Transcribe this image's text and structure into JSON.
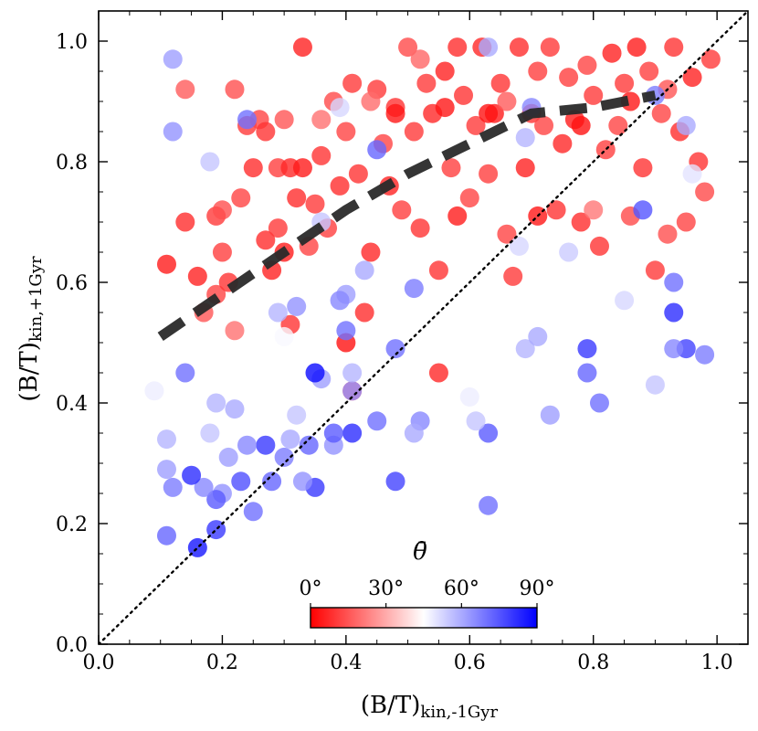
{
  "chart_data": {
    "type": "scatter",
    "xlabel": "(B/T)kin,-1Gyr",
    "ylabel": "(B/T)kin,+1Gyr",
    "xlabel_main": "(B/T)",
    "xlabel_sub": "kin,-1Gyr",
    "ylabel_main": "(B/T)",
    "ylabel_sub": "kin,+1Gyr",
    "xlim": [
      0.0,
      1.05
    ],
    "ylim": [
      0.0,
      1.05
    ],
    "xticks": [
      "0.0",
      "0.2",
      "0.4",
      "0.6",
      "0.8",
      "1.0"
    ],
    "yticks": [
      "0.0",
      "0.2",
      "0.4",
      "0.6",
      "0.8",
      "1.0"
    ],
    "xtick_values": [
      0.0,
      0.2,
      0.4,
      0.6,
      0.8,
      1.0
    ],
    "ytick_values": [
      0.0,
      0.2,
      0.4,
      0.6,
      0.8,
      1.0
    ],
    "colorbar": {
      "title": "θ̄",
      "ticks": [
        "0°",
        "30°",
        "60°",
        "90°"
      ],
      "tick_values": [
        0,
        30,
        60,
        90
      ],
      "range": [
        0,
        90
      ],
      "colors": [
        "#ff0000",
        "#ffffff",
        "#0000ff"
      ]
    },
    "reference_line": {
      "name": "one-to-one",
      "style": "dotted",
      "points": [
        [
          0.0,
          0.0
        ],
        [
          1.05,
          1.05
        ]
      ]
    },
    "trend_line": {
      "name": "median trend",
      "style": "dashed",
      "color": "#2a2a2a",
      "x": [
        0.1,
        0.2,
        0.3,
        0.4,
        0.5,
        0.6,
        0.7,
        0.8,
        0.9
      ],
      "y": [
        0.51,
        0.58,
        0.65,
        0.72,
        0.78,
        0.83,
        0.88,
        0.89,
        0.91
      ]
    },
    "points": [
      [
        0.11,
        0.63,
        5
      ],
      [
        0.14,
        0.7,
        8
      ],
      [
        0.16,
        0.61,
        6
      ],
      [
        0.17,
        0.55,
        15
      ],
      [
        0.19,
        0.58,
        12
      ],
      [
        0.19,
        0.71,
        10
      ],
      [
        0.2,
        0.72,
        14
      ],
      [
        0.2,
        0.65,
        11
      ],
      [
        0.21,
        0.6,
        9
      ],
      [
        0.22,
        0.52,
        20
      ],
      [
        0.23,
        0.74,
        12
      ],
      [
        0.24,
        0.86,
        10
      ],
      [
        0.25,
        0.79,
        8
      ],
      [
        0.26,
        0.87,
        12
      ],
      [
        0.27,
        0.85,
        9
      ],
      [
        0.27,
        0.67,
        8
      ],
      [
        0.28,
        0.62,
        6
      ],
      [
        0.29,
        0.69,
        10
      ],
      [
        0.29,
        0.79,
        11
      ],
      [
        0.3,
        0.87,
        15
      ],
      [
        0.3,
        0.65,
        5
      ],
      [
        0.31,
        0.79,
        7
      ],
      [
        0.31,
        0.53,
        9
      ],
      [
        0.32,
        0.74,
        8
      ],
      [
        0.33,
        0.99,
        6
      ],
      [
        0.34,
        0.66,
        12
      ],
      [
        0.35,
        0.73,
        10
      ],
      [
        0.36,
        0.81,
        9
      ],
      [
        0.37,
        0.69,
        11
      ],
      [
        0.38,
        0.9,
        13
      ],
      [
        0.39,
        0.76,
        8
      ],
      [
        0.4,
        0.85,
        12
      ],
      [
        0.41,
        0.93,
        10
      ],
      [
        0.42,
        0.78,
        9
      ],
      [
        0.43,
        0.55,
        8
      ],
      [
        0.44,
        0.65,
        7
      ],
      [
        0.45,
        0.92,
        10
      ],
      [
        0.46,
        0.83,
        12
      ],
      [
        0.47,
        0.76,
        6
      ],
      [
        0.48,
        0.89,
        9
      ],
      [
        0.49,
        0.72,
        11
      ],
      [
        0.5,
        0.99,
        13
      ],
      [
        0.51,
        0.85,
        10
      ],
      [
        0.52,
        0.69,
        9
      ],
      [
        0.53,
        0.93,
        10
      ],
      [
        0.54,
        0.88,
        7
      ],
      [
        0.55,
        0.62,
        9
      ],
      [
        0.56,
        0.95,
        6
      ],
      [
        0.57,
        0.79,
        11
      ],
      [
        0.58,
        0.71,
        5
      ],
      [
        0.58,
        0.99,
        8
      ],
      [
        0.59,
        0.91,
        9
      ],
      [
        0.6,
        0.74,
        12
      ],
      [
        0.61,
        0.86,
        10
      ],
      [
        0.62,
        0.99,
        7
      ],
      [
        0.63,
        0.78,
        11
      ],
      [
        0.64,
        0.88,
        5
      ],
      [
        0.65,
        0.93,
        9
      ],
      [
        0.66,
        0.68,
        12
      ],
      [
        0.67,
        0.61,
        10
      ],
      [
        0.68,
        0.99,
        8
      ],
      [
        0.69,
        0.79,
        6
      ],
      [
        0.7,
        0.88,
        9
      ],
      [
        0.71,
        0.95,
        11
      ],
      [
        0.72,
        0.86,
        12
      ],
      [
        0.73,
        0.99,
        10
      ],
      [
        0.74,
        0.72,
        9
      ],
      [
        0.75,
        0.83,
        7
      ],
      [
        0.76,
        0.94,
        11
      ],
      [
        0.77,
        0.87,
        5
      ],
      [
        0.78,
        0.7,
        8
      ],
      [
        0.79,
        0.96,
        12
      ],
      [
        0.8,
        0.91,
        10
      ],
      [
        0.81,
        0.66,
        9
      ],
      [
        0.82,
        0.82,
        11
      ],
      [
        0.83,
        0.98,
        6
      ],
      [
        0.84,
        0.86,
        12
      ],
      [
        0.85,
        0.93,
        10
      ],
      [
        0.86,
        0.71,
        13
      ],
      [
        0.87,
        0.99,
        5
      ],
      [
        0.88,
        0.79,
        9
      ],
      [
        0.89,
        0.95,
        11
      ],
      [
        0.9,
        0.62,
        10
      ],
      [
        0.91,
        0.88,
        12
      ],
      [
        0.92,
        0.68,
        14
      ],
      [
        0.93,
        0.99,
        9
      ],
      [
        0.94,
        0.85,
        8
      ],
      [
        0.95,
        0.7,
        12
      ],
      [
        0.96,
        0.94,
        6
      ],
      [
        0.97,
        0.8,
        9
      ],
      [
        0.98,
        0.75,
        13
      ],
      [
        0.99,
        0.97,
        10
      ],
      [
        0.22,
        0.92,
        14
      ],
      [
        0.14,
        0.92,
        16
      ],
      [
        0.36,
        0.87,
        20
      ],
      [
        0.44,
        0.9,
        19
      ],
      [
        0.52,
        0.97,
        18
      ],
      [
        0.66,
        0.9,
        16
      ],
      [
        0.8,
        0.72,
        21
      ],
      [
        0.92,
        0.92,
        15
      ],
      [
        0.48,
        0.88,
        4
      ],
      [
        0.56,
        0.89,
        4
      ],
      [
        0.63,
        0.88,
        3
      ],
      [
        0.78,
        0.86,
        3
      ],
      [
        0.86,
        0.9,
        4
      ],
      [
        0.4,
        0.5,
        3
      ],
      [
        0.55,
        0.45,
        7
      ],
      [
        0.71,
        0.71,
        4
      ],
      [
        0.33,
        0.79,
        5
      ],
      [
        0.41,
        0.42,
        10
      ],
      [
        0.12,
        0.97,
        62
      ],
      [
        0.12,
        0.85,
        64
      ],
      [
        0.18,
        0.8,
        55
      ],
      [
        0.24,
        0.87,
        70
      ],
      [
        0.39,
        0.89,
        52
      ],
      [
        0.45,
        0.82,
        72
      ],
      [
        0.63,
        0.99,
        60
      ],
      [
        0.69,
        0.84,
        58
      ],
      [
        0.7,
        0.89,
        66
      ],
      [
        0.88,
        0.72,
        75
      ],
      [
        0.95,
        0.86,
        60
      ],
      [
        0.9,
        0.91,
        68
      ],
      [
        0.93,
        0.6,
        70
      ],
      [
        0.93,
        0.55,
        82
      ],
      [
        0.95,
        0.49,
        78
      ],
      [
        0.93,
        0.49,
        66
      ],
      [
        0.98,
        0.48,
        68
      ],
      [
        0.9,
        0.43,
        55
      ],
      [
        0.79,
        0.49,
        80
      ],
      [
        0.79,
        0.45,
        72
      ],
      [
        0.81,
        0.4,
        70
      ],
      [
        0.73,
        0.38,
        62
      ],
      [
        0.69,
        0.49,
        58
      ],
      [
        0.71,
        0.51,
        60
      ],
      [
        0.63,
        0.35,
        74
      ],
      [
        0.63,
        0.23,
        70
      ],
      [
        0.61,
        0.37,
        55
      ],
      [
        0.52,
        0.37,
        66
      ],
      [
        0.51,
        0.35,
        60
      ],
      [
        0.51,
        0.59,
        68
      ],
      [
        0.48,
        0.49,
        70
      ],
      [
        0.48,
        0.27,
        78
      ],
      [
        0.45,
        0.37,
        70
      ],
      [
        0.41,
        0.35,
        82
      ],
      [
        0.41,
        0.42,
        64
      ],
      [
        0.41,
        0.45,
        58
      ],
      [
        0.4,
        0.58,
        62
      ],
      [
        0.4,
        0.52,
        70
      ],
      [
        0.39,
        0.57,
        66
      ],
      [
        0.38,
        0.33,
        64
      ],
      [
        0.38,
        0.35,
        74
      ],
      [
        0.36,
        0.44,
        62
      ],
      [
        0.35,
        0.45,
        88
      ],
      [
        0.35,
        0.26,
        80
      ],
      [
        0.34,
        0.33,
        72
      ],
      [
        0.33,
        0.27,
        64
      ],
      [
        0.32,
        0.56,
        64
      ],
      [
        0.32,
        0.38,
        55
      ],
      [
        0.31,
        0.34,
        60
      ],
      [
        0.3,
        0.31,
        68
      ],
      [
        0.29,
        0.55,
        58
      ],
      [
        0.28,
        0.27,
        72
      ],
      [
        0.27,
        0.33,
        80
      ],
      [
        0.25,
        0.22,
        70
      ],
      [
        0.24,
        0.33,
        66
      ],
      [
        0.23,
        0.27,
        76
      ],
      [
        0.22,
        0.39,
        60
      ],
      [
        0.21,
        0.31,
        62
      ],
      [
        0.2,
        0.25,
        64
      ],
      [
        0.19,
        0.4,
        58
      ],
      [
        0.19,
        0.24,
        74
      ],
      [
        0.19,
        0.19,
        80
      ],
      [
        0.18,
        0.35,
        55
      ],
      [
        0.17,
        0.26,
        66
      ],
      [
        0.16,
        0.16,
        86
      ],
      [
        0.15,
        0.28,
        82
      ],
      [
        0.14,
        0.45,
        70
      ],
      [
        0.12,
        0.26,
        68
      ],
      [
        0.11,
        0.34,
        58
      ],
      [
        0.11,
        0.29,
        62
      ],
      [
        0.11,
        0.18,
        72
      ],
      [
        0.09,
        0.42,
        48
      ],
      [
        0.43,
        0.62,
        60
      ],
      [
        0.36,
        0.7,
        55
      ],
      [
        0.68,
        0.66,
        52
      ],
      [
        0.76,
        0.65,
        54
      ],
      [
        0.85,
        0.57,
        52
      ],
      [
        0.6,
        0.41,
        48
      ],
      [
        0.96,
        0.78,
        50
      ],
      [
        0.3,
        0.51,
        46
      ]
    ]
  }
}
